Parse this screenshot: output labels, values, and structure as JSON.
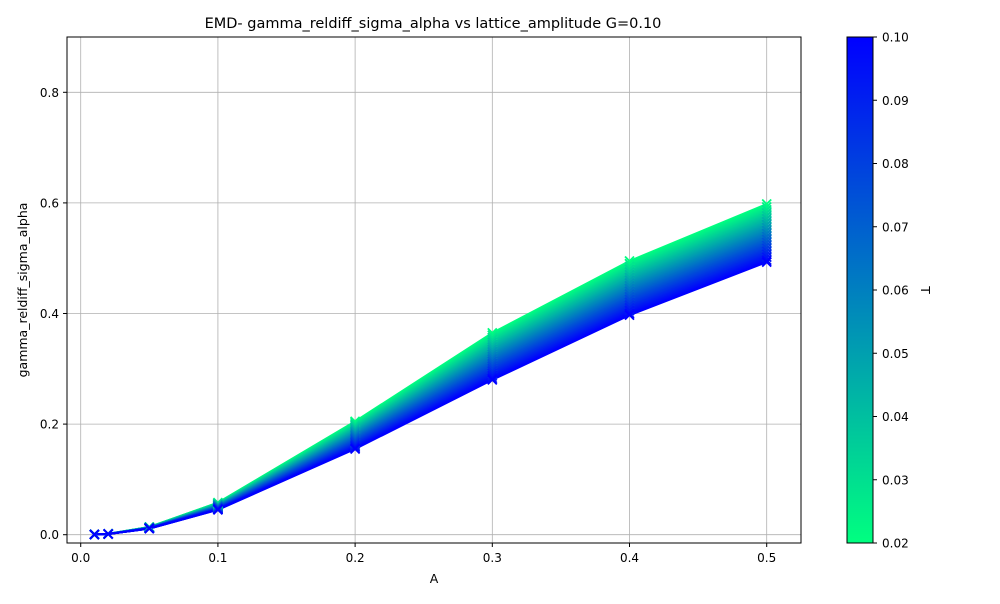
{
  "chart_data": {
    "type": "line",
    "title": "EMD- gamma_reldiff_sigma_alpha vs lattice_amplitude G=0.10",
    "xlabel": "A",
    "ylabel": "gamma_reldiff_sigma_alpha",
    "xlim": [
      -0.01,
      0.525
    ],
    "ylim": [
      -0.015,
      0.9
    ],
    "xticks": [
      0.0,
      0.1,
      0.2,
      0.3,
      0.4,
      0.5
    ],
    "xtick_labels": [
      "0.0",
      "0.1",
      "0.2",
      "0.3",
      "0.4",
      "0.5"
    ],
    "yticks": [
      0.0,
      0.2,
      0.4,
      0.6,
      0.8
    ],
    "ytick_labels": [
      "0.0",
      "0.2",
      "0.4",
      "0.6",
      "0.8"
    ],
    "grid": true,
    "marker": "x",
    "x": [
      0.01,
      0.02,
      0.05,
      0.1,
      0.2,
      0.3,
      0.4,
      0.5
    ],
    "series_band": {
      "description": "Many curves, one per T value, colored by T",
      "T_range": [
        0.02,
        0.1
      ],
      "low_T_values": [
        0.0005,
        0.0015,
        0.014,
        0.058,
        0.205,
        0.365,
        0.495,
        0.598
      ],
      "high_T_values": [
        0.0004,
        0.0012,
        0.011,
        0.045,
        0.155,
        0.28,
        0.397,
        0.493
      ]
    },
    "colorbar": {
      "label": "T",
      "min": 0.02,
      "max": 0.1,
      "ticks": [
        0.02,
        0.03,
        0.04,
        0.05,
        0.06,
        0.07,
        0.08,
        0.09,
        0.1
      ],
      "tick_labels": [
        "0.02",
        "0.03",
        "0.04",
        "0.05",
        "0.06",
        "0.07",
        "0.08",
        "0.09",
        "0.10"
      ],
      "color_low": "#00ff80",
      "color_high": "#0000ff",
      "colormap": "winter"
    }
  }
}
